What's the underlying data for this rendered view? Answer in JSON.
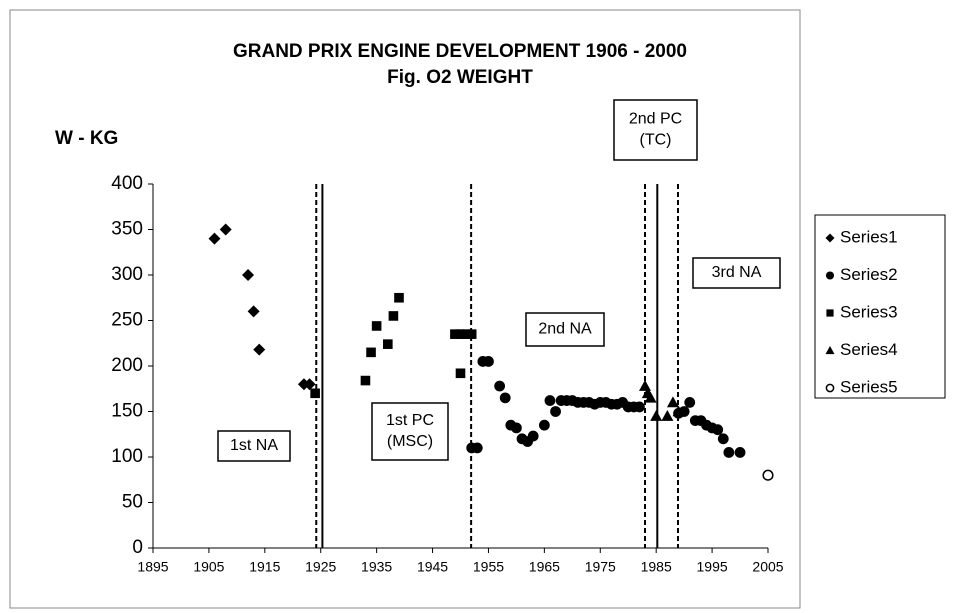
{
  "chart_data": {
    "type": "scatter",
    "title": [
      "GRAND PRIX ENGINE DEVELOPMENT  1906 - 2000",
      "Fig. O2  WEIGHT"
    ],
    "y_label": "W - KG",
    "xlim": [
      1895,
      2005
    ],
    "xticks": [
      1895,
      1905,
      1915,
      1925,
      1935,
      1945,
      1955,
      1965,
      1975,
      1985,
      1995,
      2005
    ],
    "ylim": [
      0,
      400
    ],
    "yticks": [
      0,
      50,
      100,
      150,
      200,
      250,
      300,
      350,
      400
    ],
    "grid": false,
    "legend": "right",
    "vlines": [
      {
        "x": 1924.2,
        "dashed": true
      },
      {
        "x": 1925.3,
        "dashed": false
      },
      {
        "x": 1951.9,
        "dashed": true
      },
      {
        "x": 1983,
        "dashed": true
      },
      {
        "x": 1985.2,
        "dashed": false
      },
      {
        "x": 1988.9,
        "dashed": true
      }
    ],
    "annotations": [
      {
        "lines": [
          "1st NA"
        ]
      },
      {
        "lines": [
          "1st PC",
          "(MSC)"
        ]
      },
      {
        "lines": [
          "2nd NA"
        ]
      },
      {
        "lines": [
          "2nd PC",
          "(TC)"
        ]
      },
      {
        "lines": [
          "3rd NA"
        ]
      }
    ],
    "series": [
      {
        "name": "Series1",
        "color": "#000000",
        "marker": "diamond",
        "x": [
          1906,
          1908,
          1912,
          1913,
          1914,
          1922,
          1923
        ],
        "values": [
          340,
          350,
          300,
          260,
          218,
          180,
          180
        ]
      },
      {
        "name": "Series2",
        "color": "#000000",
        "marker": "circle",
        "x": [
          1952,
          1953,
          1954,
          1955,
          1957,
          1958,
          1959,
          1960,
          1961,
          1962,
          1963,
          1965,
          1966,
          1967,
          1968,
          1969,
          1970,
          1971,
          1972,
          1973,
          1974,
          1975,
          1976,
          1977,
          1978,
          1979,
          1980,
          1981,
          1982,
          1989,
          1990,
          1991,
          1992,
          1993,
          1994,
          1995,
          1996,
          1997,
          1998,
          2000
        ],
        "values": [
          110,
          110,
          205,
          205,
          178,
          165,
          135,
          132,
          120,
          117,
          123,
          135,
          162,
          150,
          162,
          162,
          162,
          160,
          160,
          160,
          158,
          160,
          160,
          158,
          158,
          160,
          155,
          155,
          155,
          148,
          150,
          160,
          140,
          140,
          135,
          132,
          130,
          120,
          105,
          105
        ]
      },
      {
        "name": "Series3",
        "color": "#000000",
        "marker": "square",
        "x": [
          1924,
          1933,
          1934,
          1935,
          1937,
          1938,
          1939,
          1949,
          1950,
          1950,
          1951,
          1952
        ],
        "values": [
          170,
          184,
          215,
          244,
          224,
          255,
          275,
          235,
          192,
          235,
          235,
          235
        ]
      },
      {
        "name": "Series4",
        "color": "#000000",
        "marker": "triangle",
        "x": [
          1983,
          1983.5,
          1984,
          1985,
          1987,
          1988,
          1989
        ],
        "values": [
          178,
          170,
          165,
          145,
          145,
          160,
          150
        ]
      },
      {
        "name": "Series5",
        "color": "#000000",
        "marker": "open-circle",
        "x": [
          2005
        ],
        "values": [
          80
        ]
      }
    ]
  }
}
